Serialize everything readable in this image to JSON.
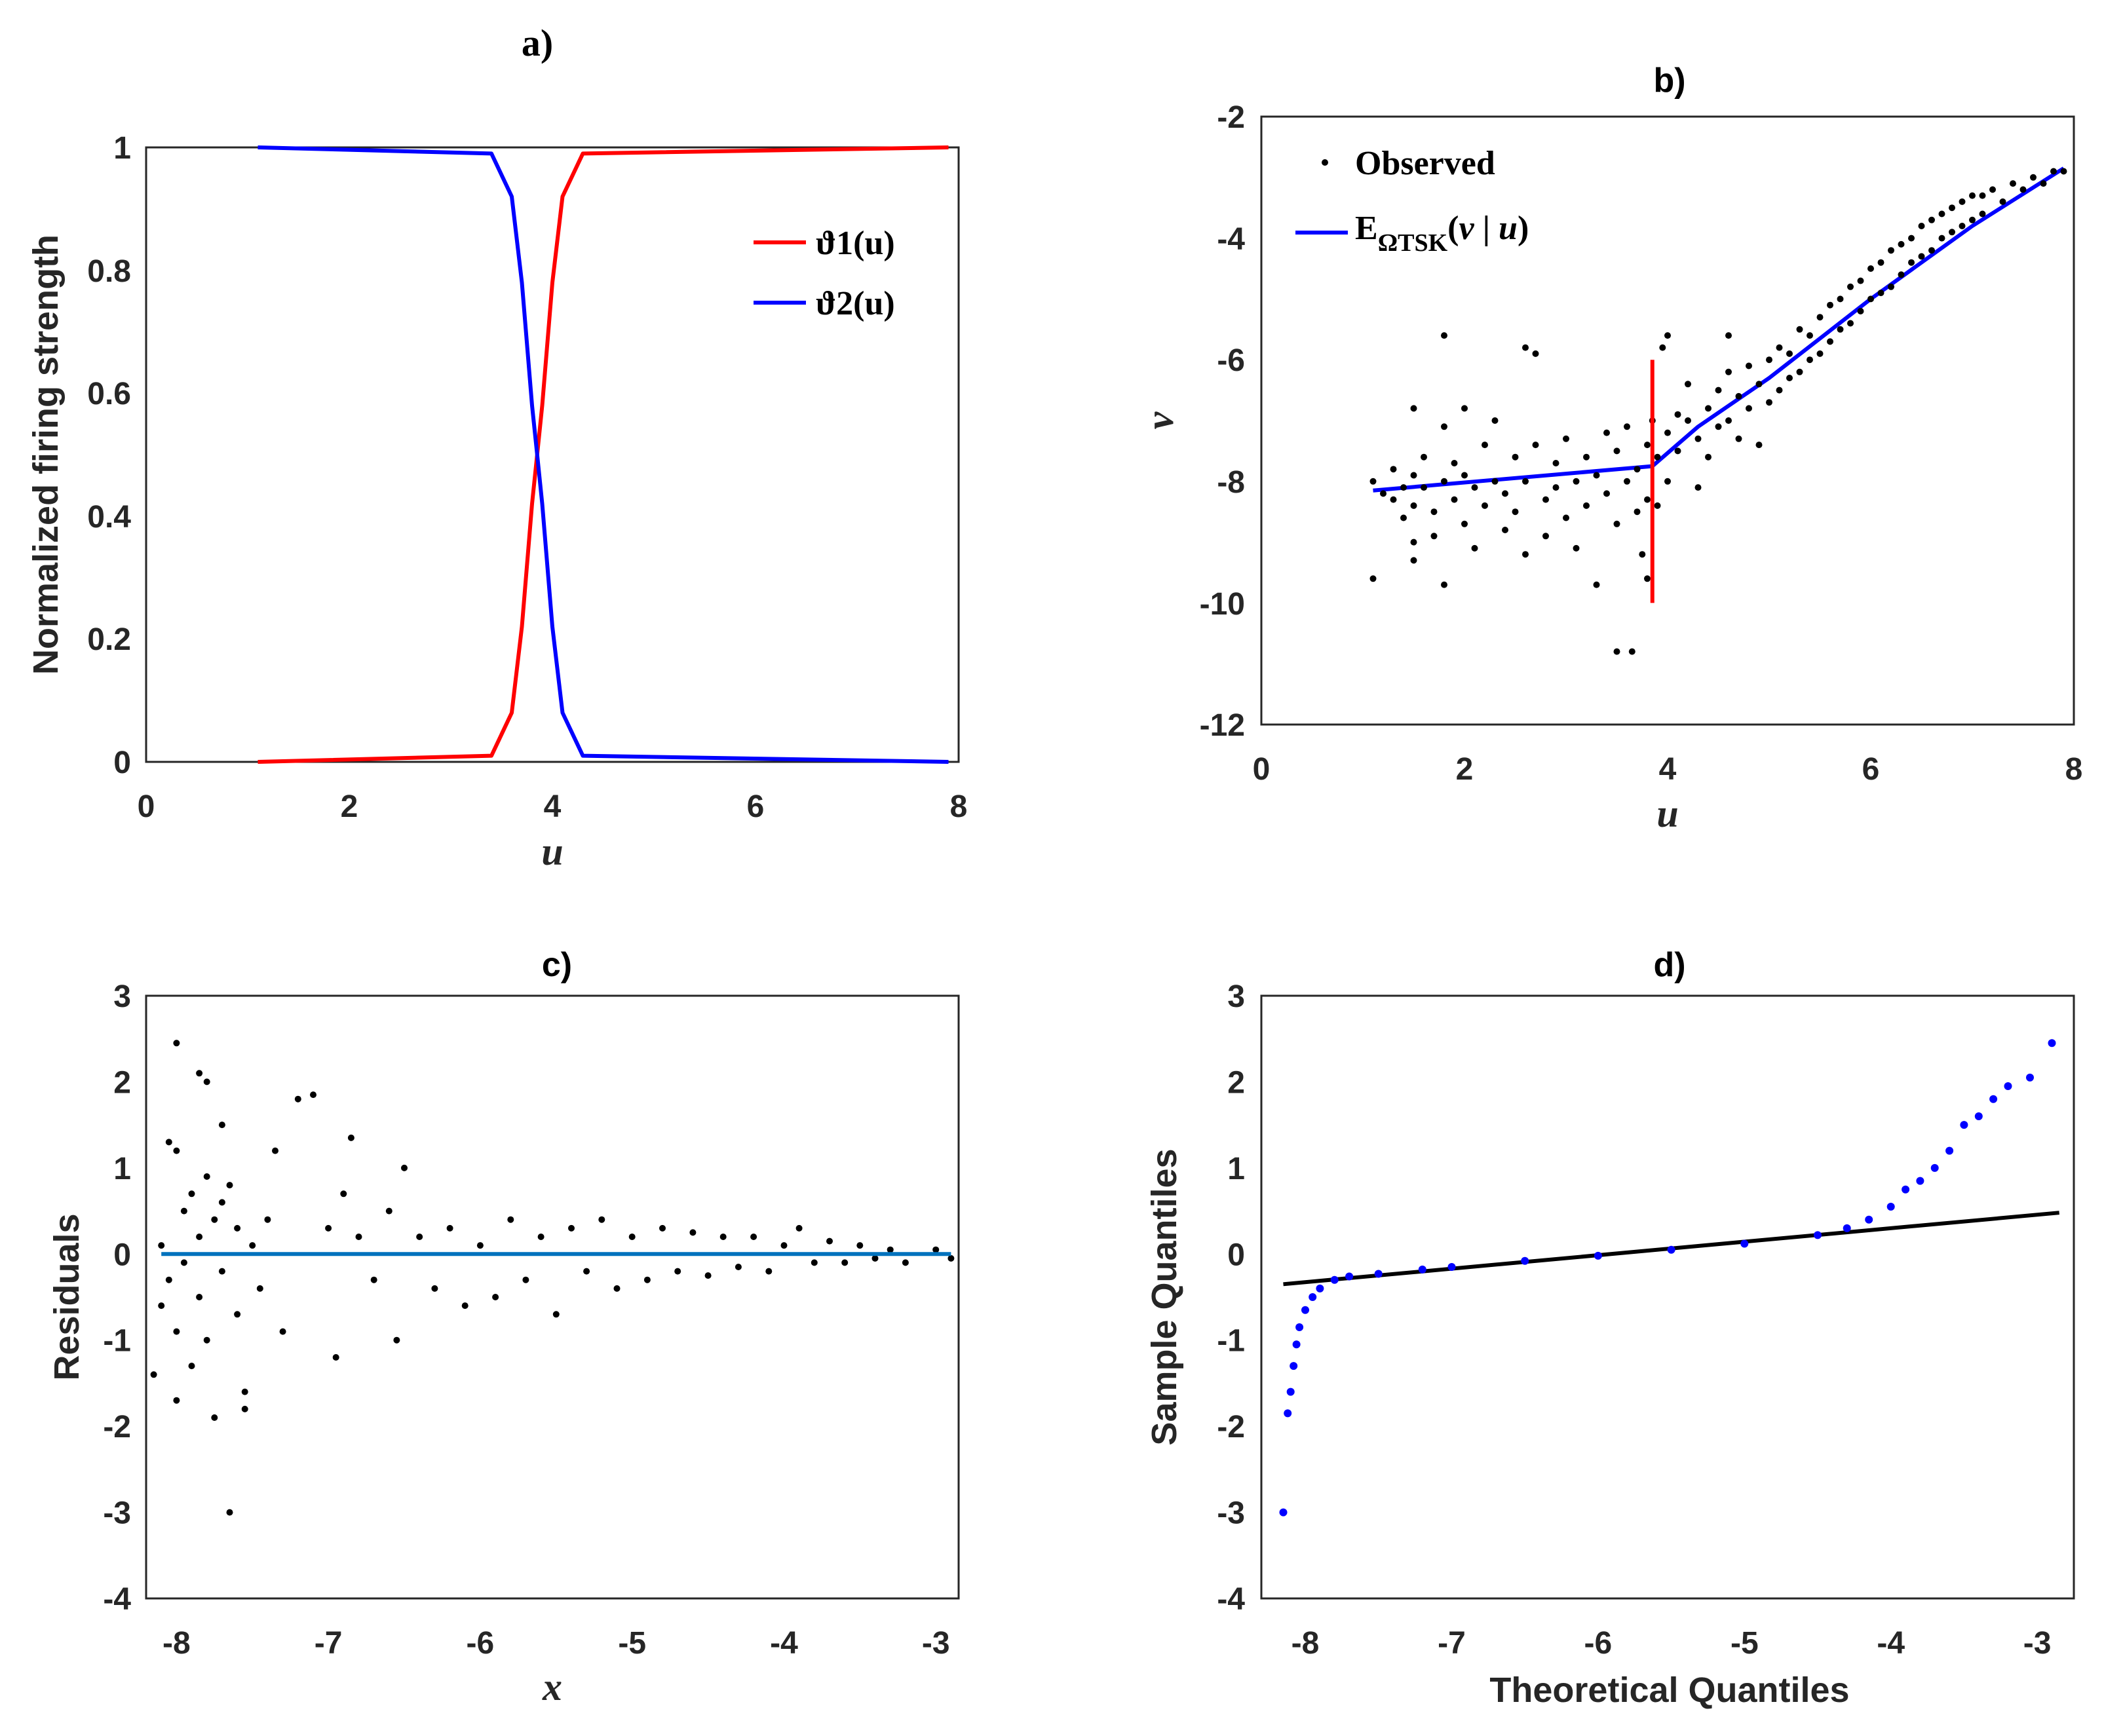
{
  "chart_data": [
    {
      "panel": "a",
      "type": "line",
      "title": "a)",
      "xlabel": "u",
      "ylabel": "Normalized firing strength",
      "xlim": [
        0,
        8
      ],
      "ylim": [
        0,
        1
      ],
      "xticks": [
        "0",
        "2",
        "4",
        "6",
        "8"
      ],
      "yticks": [
        "0",
        "0.2",
        "0.4",
        "0.6",
        "0.8",
        "1"
      ],
      "legend": {
        "position": "top-right"
      },
      "series": [
        {
          "name": "ϑ1(u)",
          "color": "#ff0000",
          "x": [
            1.1,
            3.4,
            3.6,
            3.7,
            3.8,
            3.85,
            3.9,
            4.0,
            4.1,
            4.3,
            7.9
          ],
          "values": [
            0.0,
            0.01,
            0.08,
            0.22,
            0.42,
            0.5,
            0.58,
            0.78,
            0.92,
            0.99,
            1.0
          ]
        },
        {
          "name": "ϑ2(u)",
          "color": "#0000ff",
          "x": [
            1.1,
            3.4,
            3.6,
            3.7,
            3.8,
            3.85,
            3.9,
            4.0,
            4.1,
            4.3,
            7.9
          ],
          "values": [
            1.0,
            0.99,
            0.92,
            0.78,
            0.58,
            0.5,
            0.42,
            0.22,
            0.08,
            0.01,
            0.0
          ]
        }
      ]
    },
    {
      "panel": "b",
      "type": "scatter",
      "title": "b)",
      "xlabel": "u",
      "ylabel": "v",
      "xlim": [
        0,
        8
      ],
      "ylim": [
        -12,
        -2
      ],
      "xticks": [
        "0",
        "2",
        "4",
        "6",
        "8"
      ],
      "yticks": [
        "-12",
        "-10",
        "-8",
        "-6",
        "-4",
        "-2"
      ],
      "legend": {
        "position": "top-left",
        "observed_label": "Observed",
        "fit_label_main": "E",
        "fit_label_sub": "ΩTSK",
        "fit_label_open": "(",
        "fit_label_v": "v",
        "fit_label_bar": " | ",
        "fit_label_u": "u",
        "fit_label_close": ")"
      },
      "observed": [
        [
          1.1,
          -9.6
        ],
        [
          1.1,
          -8.0
        ],
        [
          1.2,
          -8.2
        ],
        [
          1.3,
          -7.8
        ],
        [
          1.3,
          -8.3
        ],
        [
          1.4,
          -8.1
        ],
        [
          1.4,
          -8.6
        ],
        [
          1.5,
          -6.8
        ],
        [
          1.5,
          -7.9
        ],
        [
          1.5,
          -8.4
        ],
        [
          1.5,
          -9.0
        ],
        [
          1.5,
          -9.3
        ],
        [
          1.6,
          -8.1
        ],
        [
          1.6,
          -7.6
        ],
        [
          1.7,
          -8.5
        ],
        [
          1.7,
          -8.9
        ],
        [
          1.8,
          -5.6
        ],
        [
          1.8,
          -7.1
        ],
        [
          1.8,
          -8.0
        ],
        [
          1.8,
          -9.7
        ],
        [
          1.9,
          -7.7
        ],
        [
          1.9,
          -8.3
        ],
        [
          2.0,
          -6.8
        ],
        [
          2.0,
          -7.9
        ],
        [
          2.0,
          -8.7
        ],
        [
          2.1,
          -8.1
        ],
        [
          2.1,
          -9.1
        ],
        [
          2.2,
          -7.4
        ],
        [
          2.2,
          -8.4
        ],
        [
          2.3,
          -7.0
        ],
        [
          2.3,
          -8.0
        ],
        [
          2.4,
          -8.8
        ],
        [
          2.4,
          -8.2
        ],
        [
          2.5,
          -7.6
        ],
        [
          2.5,
          -8.5
        ],
        [
          2.6,
          -8.0
        ],
        [
          2.6,
          -9.2
        ],
        [
          2.6,
          -5.8
        ],
        [
          2.7,
          -5.9
        ],
        [
          2.7,
          -7.4
        ],
        [
          2.8,
          -8.3
        ],
        [
          2.8,
          -8.9
        ],
        [
          2.9,
          -7.7
        ],
        [
          2.9,
          -8.1
        ],
        [
          3.0,
          -7.3
        ],
        [
          3.0,
          -8.6
        ],
        [
          3.1,
          -8.0
        ],
        [
          3.1,
          -9.1
        ],
        [
          3.2,
          -7.6
        ],
        [
          3.2,
          -8.4
        ],
        [
          3.3,
          -7.9
        ],
        [
          3.3,
          -9.7
        ],
        [
          3.4,
          -7.2
        ],
        [
          3.4,
          -8.2
        ],
        [
          3.5,
          -10.8
        ],
        [
          3.5,
          -7.5
        ],
        [
          3.5,
          -8.7
        ],
        [
          3.6,
          -8.0
        ],
        [
          3.6,
          -7.1
        ],
        [
          3.65,
          -10.8
        ],
        [
          3.7,
          -7.8
        ],
        [
          3.7,
          -8.5
        ],
        [
          3.75,
          -9.2
        ],
        [
          3.8,
          -7.4
        ],
        [
          3.8,
          -9.6
        ],
        [
          3.8,
          -8.3
        ],
        [
          3.85,
          -7.0
        ],
        [
          3.9,
          -7.6
        ],
        [
          3.9,
          -8.4
        ],
        [
          3.95,
          -5.8
        ],
        [
          4.0,
          -7.2
        ],
        [
          4.0,
          -8.0
        ],
        [
          4.0,
          -5.6
        ],
        [
          4.1,
          -6.9
        ],
        [
          4.1,
          -7.5
        ],
        [
          4.2,
          -7.0
        ],
        [
          4.2,
          -6.4
        ],
        [
          4.3,
          -7.3
        ],
        [
          4.3,
          -8.1
        ],
        [
          4.4,
          -6.8
        ],
        [
          4.4,
          -7.6
        ],
        [
          4.5,
          -6.5
        ],
        [
          4.5,
          -7.1
        ],
        [
          4.6,
          -6.2
        ],
        [
          4.6,
          -7.0
        ],
        [
          4.6,
          -5.6
        ],
        [
          4.7,
          -6.6
        ],
        [
          4.7,
          -7.3
        ],
        [
          4.8,
          -6.1
        ],
        [
          4.8,
          -6.8
        ],
        [
          4.9,
          -6.4
        ],
        [
          4.9,
          -7.4
        ],
        [
          5.0,
          -6.0
        ],
        [
          5.0,
          -6.7
        ],
        [
          5.1,
          -5.8
        ],
        [
          5.1,
          -6.5
        ],
        [
          5.2,
          -5.9
        ],
        [
          5.2,
          -6.3
        ],
        [
          5.3,
          -5.5
        ],
        [
          5.3,
          -6.2
        ],
        [
          5.4,
          -5.6
        ],
        [
          5.4,
          -6.0
        ],
        [
          5.5,
          -5.3
        ],
        [
          5.5,
          -5.9
        ],
        [
          5.6,
          -5.1
        ],
        [
          5.6,
          -5.7
        ],
        [
          5.7,
          -5.0
        ],
        [
          5.7,
          -5.5
        ],
        [
          5.8,
          -4.8
        ],
        [
          5.8,
          -5.4
        ],
        [
          5.9,
          -4.7
        ],
        [
          5.9,
          -5.2
        ],
        [
          6.0,
          -4.5
        ],
        [
          6.0,
          -5.0
        ],
        [
          6.1,
          -4.4
        ],
        [
          6.1,
          -4.9
        ],
        [
          6.2,
          -4.2
        ],
        [
          6.2,
          -4.8
        ],
        [
          6.3,
          -4.1
        ],
        [
          6.3,
          -4.6
        ],
        [
          6.4,
          -4.0
        ],
        [
          6.4,
          -4.4
        ],
        [
          6.5,
          -3.8
        ],
        [
          6.5,
          -4.3
        ],
        [
          6.6,
          -3.7
        ],
        [
          6.6,
          -4.2
        ],
        [
          6.7,
          -3.6
        ],
        [
          6.7,
          -4.0
        ],
        [
          6.8,
          -3.5
        ],
        [
          6.8,
          -3.9
        ],
        [
          6.9,
          -3.4
        ],
        [
          6.9,
          -3.8
        ],
        [
          7.0,
          -3.3
        ],
        [
          7.0,
          -3.7
        ],
        [
          7.1,
          -3.3
        ],
        [
          7.1,
          -3.6
        ],
        [
          7.2,
          -3.2
        ],
        [
          7.3,
          -3.4
        ],
        [
          7.4,
          -3.1
        ],
        [
          7.5,
          -3.2
        ],
        [
          7.6,
          -3.0
        ],
        [
          7.7,
          -3.1
        ],
        [
          7.8,
          -2.9
        ],
        [
          7.9,
          -2.9
        ]
      ],
      "fit": {
        "color": "#0000ff",
        "x": [
          1.1,
          3.85,
          4.3,
          5.0,
          6.0,
          7.0,
          7.9
        ],
        "values": [
          -8.15,
          -7.75,
          -7.1,
          -6.3,
          -5.0,
          -3.8,
          -2.85
        ]
      },
      "threshold": {
        "color": "#ff0000",
        "x": 3.85,
        "y_range": [
          -10,
          -6
        ]
      }
    },
    {
      "panel": "c",
      "type": "scatter",
      "title": "c)",
      "xlabel": "x",
      "ylabel": "Residuals",
      "xlim": [
        -8.2,
        -2.85
      ],
      "ylim": [
        -4,
        3
      ],
      "xticks": [
        "-8",
        "-7",
        "-6",
        "-5",
        "-4",
        "-3"
      ],
      "yticks": [
        "-4",
        "-3",
        "-2",
        "-1",
        "0",
        "1",
        "2",
        "3"
      ],
      "zero_line": {
        "color": "#0072bd",
        "x": [
          -8.1,
          -2.9
        ],
        "values": [
          0,
          0
        ]
      },
      "points": [
        [
          -8.15,
          -1.4
        ],
        [
          -8.1,
          0.1
        ],
        [
          -8.1,
          -0.6
        ],
        [
          -8.05,
          1.3
        ],
        [
          -8.05,
          -0.3
        ],
        [
          -8.0,
          2.45
        ],
        [
          -8.0,
          1.2
        ],
        [
          -8.0,
          -0.9
        ],
        [
          -8.0,
          -1.7
        ],
        [
          -7.95,
          0.5
        ],
        [
          -7.95,
          -0.1
        ],
        [
          -7.9,
          0.7
        ],
        [
          -7.9,
          -1.3
        ],
        [
          -7.85,
          2.1
        ],
        [
          -7.85,
          0.2
        ],
        [
          -7.85,
          -0.5
        ],
        [
          -7.8,
          2.0
        ],
        [
          -7.8,
          0.9
        ],
        [
          -7.8,
          -1.0
        ],
        [
          -7.75,
          -1.9
        ],
        [
          -7.75,
          0.4
        ],
        [
          -7.7,
          0.6
        ],
        [
          -7.7,
          -0.2
        ],
        [
          -7.7,
          1.5
        ],
        [
          -7.65,
          -3.0
        ],
        [
          -7.65,
          0.8
        ],
        [
          -7.6,
          0.3
        ],
        [
          -7.6,
          -0.7
        ],
        [
          -7.55,
          -1.6
        ],
        [
          -7.55,
          -1.8
        ],
        [
          -7.5,
          0.1
        ],
        [
          -7.45,
          -0.4
        ],
        [
          -7.4,
          0.4
        ],
        [
          -7.35,
          1.2
        ],
        [
          -7.3,
          -0.9
        ],
        [
          -7.2,
          1.8
        ],
        [
          -7.1,
          1.85
        ],
        [
          -7.0,
          0.3
        ],
        [
          -6.95,
          -1.2
        ],
        [
          -6.9,
          0.7
        ],
        [
          -6.85,
          1.35
        ],
        [
          -6.8,
          0.2
        ],
        [
          -6.7,
          -0.3
        ],
        [
          -6.6,
          0.5
        ],
        [
          -6.55,
          -1.0
        ],
        [
          -6.5,
          1.0
        ],
        [
          -6.4,
          0.2
        ],
        [
          -6.3,
          -0.4
        ],
        [
          -6.2,
          0.3
        ],
        [
          -6.1,
          -0.6
        ],
        [
          -6.0,
          0.1
        ],
        [
          -5.9,
          -0.5
        ],
        [
          -5.8,
          0.4
        ],
        [
          -5.7,
          -0.3
        ],
        [
          -5.6,
          0.2
        ],
        [
          -5.5,
          -0.7
        ],
        [
          -5.4,
          0.3
        ],
        [
          -5.3,
          -0.2
        ],
        [
          -5.2,
          0.4
        ],
        [
          -5.1,
          -0.4
        ],
        [
          -5.0,
          0.2
        ],
        [
          -4.9,
          -0.3
        ],
        [
          -4.8,
          0.3
        ],
        [
          -4.7,
          -0.2
        ],
        [
          -4.6,
          0.25
        ],
        [
          -4.5,
          -0.25
        ],
        [
          -4.4,
          0.2
        ],
        [
          -4.3,
          -0.15
        ],
        [
          -4.2,
          0.2
        ],
        [
          -4.1,
          -0.2
        ],
        [
          -4.0,
          0.1
        ],
        [
          -3.9,
          0.3
        ],
        [
          -3.8,
          -0.1
        ],
        [
          -3.7,
          0.15
        ],
        [
          -3.6,
          -0.1
        ],
        [
          -3.5,
          0.1
        ],
        [
          -3.4,
          -0.05
        ],
        [
          -3.3,
          0.05
        ],
        [
          -3.2,
          -0.1
        ],
        [
          -3.0,
          0.05
        ],
        [
          -2.9,
          -0.05
        ]
      ]
    },
    {
      "panel": "d",
      "type": "scatter",
      "title": "d)",
      "xlabel": "Theoretical Quantiles",
      "ylabel": "Sample Quantiles",
      "xlim": [
        -8.3,
        -2.75
      ],
      "ylim": [
        -4,
        3
      ],
      "xticks": [
        "-8",
        "-7",
        "-6",
        "-5",
        "-4",
        "-3"
      ],
      "yticks": [
        "-4",
        "-3",
        "-2",
        "-1",
        "0",
        "1",
        "2",
        "3"
      ],
      "reference_line": {
        "color": "#000000",
        "x": [
          -8.15,
          -2.85
        ],
        "values": [
          -0.35,
          0.48
        ]
      },
      "points_color": "#0000ff",
      "points": [
        [
          -8.15,
          -3.0
        ],
        [
          -8.12,
          -1.85
        ],
        [
          -8.1,
          -1.6
        ],
        [
          -8.08,
          -1.3
        ],
        [
          -8.06,
          -1.05
        ],
        [
          -8.04,
          -0.85
        ],
        [
          -8.0,
          -0.65
        ],
        [
          -7.95,
          -0.5
        ],
        [
          -7.9,
          -0.4
        ],
        [
          -7.8,
          -0.3
        ],
        [
          -7.7,
          -0.26
        ],
        [
          -7.5,
          -0.23
        ],
        [
          -7.2,
          -0.18
        ],
        [
          -7.0,
          -0.15
        ],
        [
          -6.5,
          -0.08
        ],
        [
          -6.0,
          -0.02
        ],
        [
          -5.5,
          0.05
        ],
        [
          -5.0,
          0.12
        ],
        [
          -4.5,
          0.22
        ],
        [
          -4.3,
          0.3
        ],
        [
          -4.15,
          0.4
        ],
        [
          -4.0,
          0.55
        ],
        [
          -3.9,
          0.75
        ],
        [
          -3.8,
          0.85
        ],
        [
          -3.7,
          1.0
        ],
        [
          -3.6,
          1.2
        ],
        [
          -3.5,
          1.5
        ],
        [
          -3.4,
          1.6
        ],
        [
          -3.3,
          1.8
        ],
        [
          -3.2,
          1.95
        ],
        [
          -3.05,
          2.05
        ],
        [
          -2.9,
          2.45
        ]
      ]
    }
  ]
}
